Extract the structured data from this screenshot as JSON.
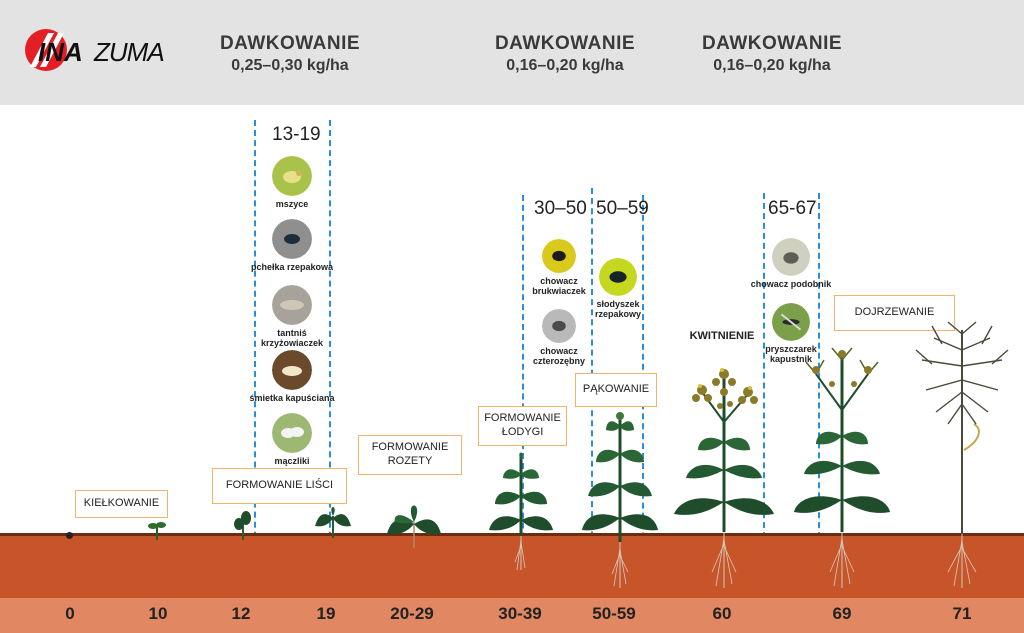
{
  "brand": {
    "logo_text": "INAZUMA"
  },
  "dosing": [
    {
      "title": "DAWKOWANIE",
      "value": "0,25–0,30 kg/ha"
    },
    {
      "title": "DAWKOWANIE",
      "value": "0,16–0,20 kg/ha"
    },
    {
      "title": "DAWKOWANIE",
      "value": "0,16–0,20 kg/ha"
    }
  ],
  "ranges": [
    "13-19",
    "30–50",
    "50–59",
    "65-67"
  ],
  "stages": [
    "KIEŁKOWANIE",
    "FORMOWANIE LIŚCI",
    "FORMOWANIE ROZETY",
    "FORMOWANIE ŁODYGI",
    "PĄKOWANIE",
    "KWITNIENIE",
    "DOJRZEWANIE"
  ],
  "pests": [
    {
      "label": "mszyce",
      "icon": "aphid-icon"
    },
    {
      "label": "pchełka rzepakowa",
      "icon": "flea-beetle-icon"
    },
    {
      "label": "tantniś krzyżowiaczek",
      "icon": "diamondback-moth-icon"
    },
    {
      "label": "śmietka kapuściana",
      "icon": "cabbage-root-fly-icon"
    },
    {
      "label": "mączliki",
      "icon": "whitefly-icon"
    },
    {
      "label": "chowacz brukwiaczek",
      "icon": "stem-weevil-icon"
    },
    {
      "label": "chowacz czterozębny",
      "icon": "weevil-icon"
    },
    {
      "label": "słodyszek rzepakowy",
      "icon": "pollen-beetle-icon"
    },
    {
      "label": "chowacz podobnik",
      "icon": "seed-weevil-icon"
    },
    {
      "label": "pryszczarek kapustnik",
      "icon": "pod-midge-icon"
    }
  ],
  "axis_ticks": [
    "0",
    "10",
    "12",
    "19",
    "20-29",
    "30-39",
    "50-59",
    "60",
    "69",
    "71"
  ],
  "colors": {
    "topbar": "#e3e3e3",
    "soil": "#c8552a",
    "axis": "#e18762",
    "dashed": "#2b8fd6",
    "stage_border": "#f0b56a",
    "leaf": "#1f4d2c"
  }
}
